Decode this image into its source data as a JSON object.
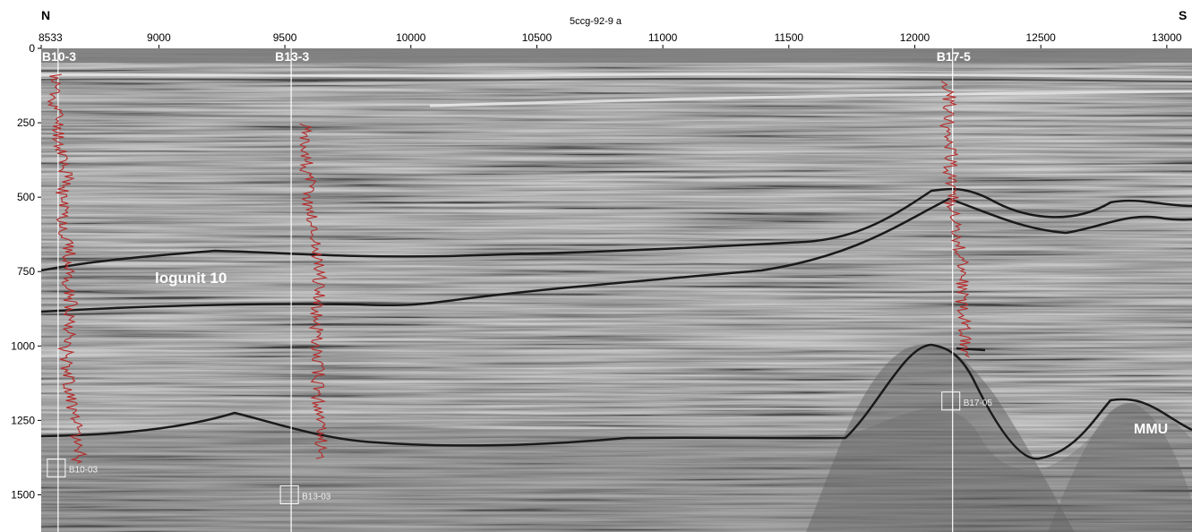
{
  "header": {
    "left_direction": "N",
    "right_direction": "S",
    "section_title": "5ccg-92-9 a"
  },
  "x_axis": {
    "ticks": [
      "8533",
      "9000",
      "9500",
      "10000",
      "10500",
      "11000",
      "11500",
      "12000",
      "12500",
      "13000"
    ],
    "tick_values": [
      8533,
      9000,
      9500,
      10000,
      10500,
      11000,
      11500,
      12000,
      12500,
      13000
    ],
    "range": [
      8533,
      13100
    ]
  },
  "y_axis": {
    "ticks": [
      "0",
      "250",
      "500",
      "750",
      "1000",
      "1250",
      "1500"
    ],
    "tick_values": [
      0,
      250,
      500,
      750,
      1000,
      1250,
      1500
    ],
    "range": [
      0,
      1625
    ]
  },
  "wells": [
    {
      "name": "B10-3",
      "trace": 8600,
      "core_label": "B10-03",
      "core_depth": 1410
    },
    {
      "name": "B13-3",
      "trace": 9525,
      "core_label": "B13-03",
      "core_depth": 1500
    },
    {
      "name": "B17-5",
      "trace": 12150,
      "core_label": "B17-05",
      "core_depth": 1185
    }
  ],
  "annotations": {
    "unit_label": "logunit 10",
    "surface_label": "MMU"
  },
  "colors": {
    "seismic_base": "#8e8e8e",
    "horizon": "#1a1a1a",
    "log_curve": "#b52a2a",
    "well_line": "#ffffff",
    "label_text": "#ffffff"
  }
}
